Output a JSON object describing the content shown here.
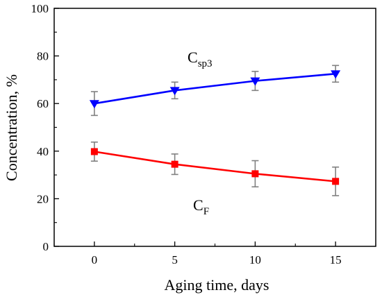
{
  "chart_data": {
    "type": "line",
    "title": "",
    "xlabel": "Aging time, days",
    "ylabel": "Concentration, %",
    "xlim": [
      -2.5,
      17.5
    ],
    "ylim": [
      0,
      100
    ],
    "xticks": [
      0,
      5,
      10,
      15
    ],
    "yticks": [
      0,
      20,
      40,
      60,
      80,
      100
    ],
    "x_minor_ticks": [
      -2.5,
      2.5,
      7.5,
      12.5,
      17.5
    ],
    "y_minor_ticks": [
      10,
      30,
      50,
      70,
      90
    ],
    "grid": false,
    "legend": "none",
    "series": [
      {
        "label_main": "C",
        "label_sub": "sp3",
        "color": "#0000ff",
        "marker": "triangle-down",
        "x": [
          0,
          5,
          10,
          15
        ],
        "y": [
          60.0,
          65.5,
          69.5,
          72.5
        ],
        "error": [
          5.0,
          3.5,
          4.0,
          3.5
        ]
      },
      {
        "label_main": "C",
        "label_sub": "F",
        "color": "#ff0000",
        "marker": "square",
        "x": [
          0,
          5,
          10,
          15
        ],
        "y": [
          39.8,
          34.5,
          30.5,
          27.3
        ],
        "error": [
          4.0,
          4.3,
          5.5,
          6.0
        ]
      }
    ],
    "errorbar_color": "#808080"
  }
}
